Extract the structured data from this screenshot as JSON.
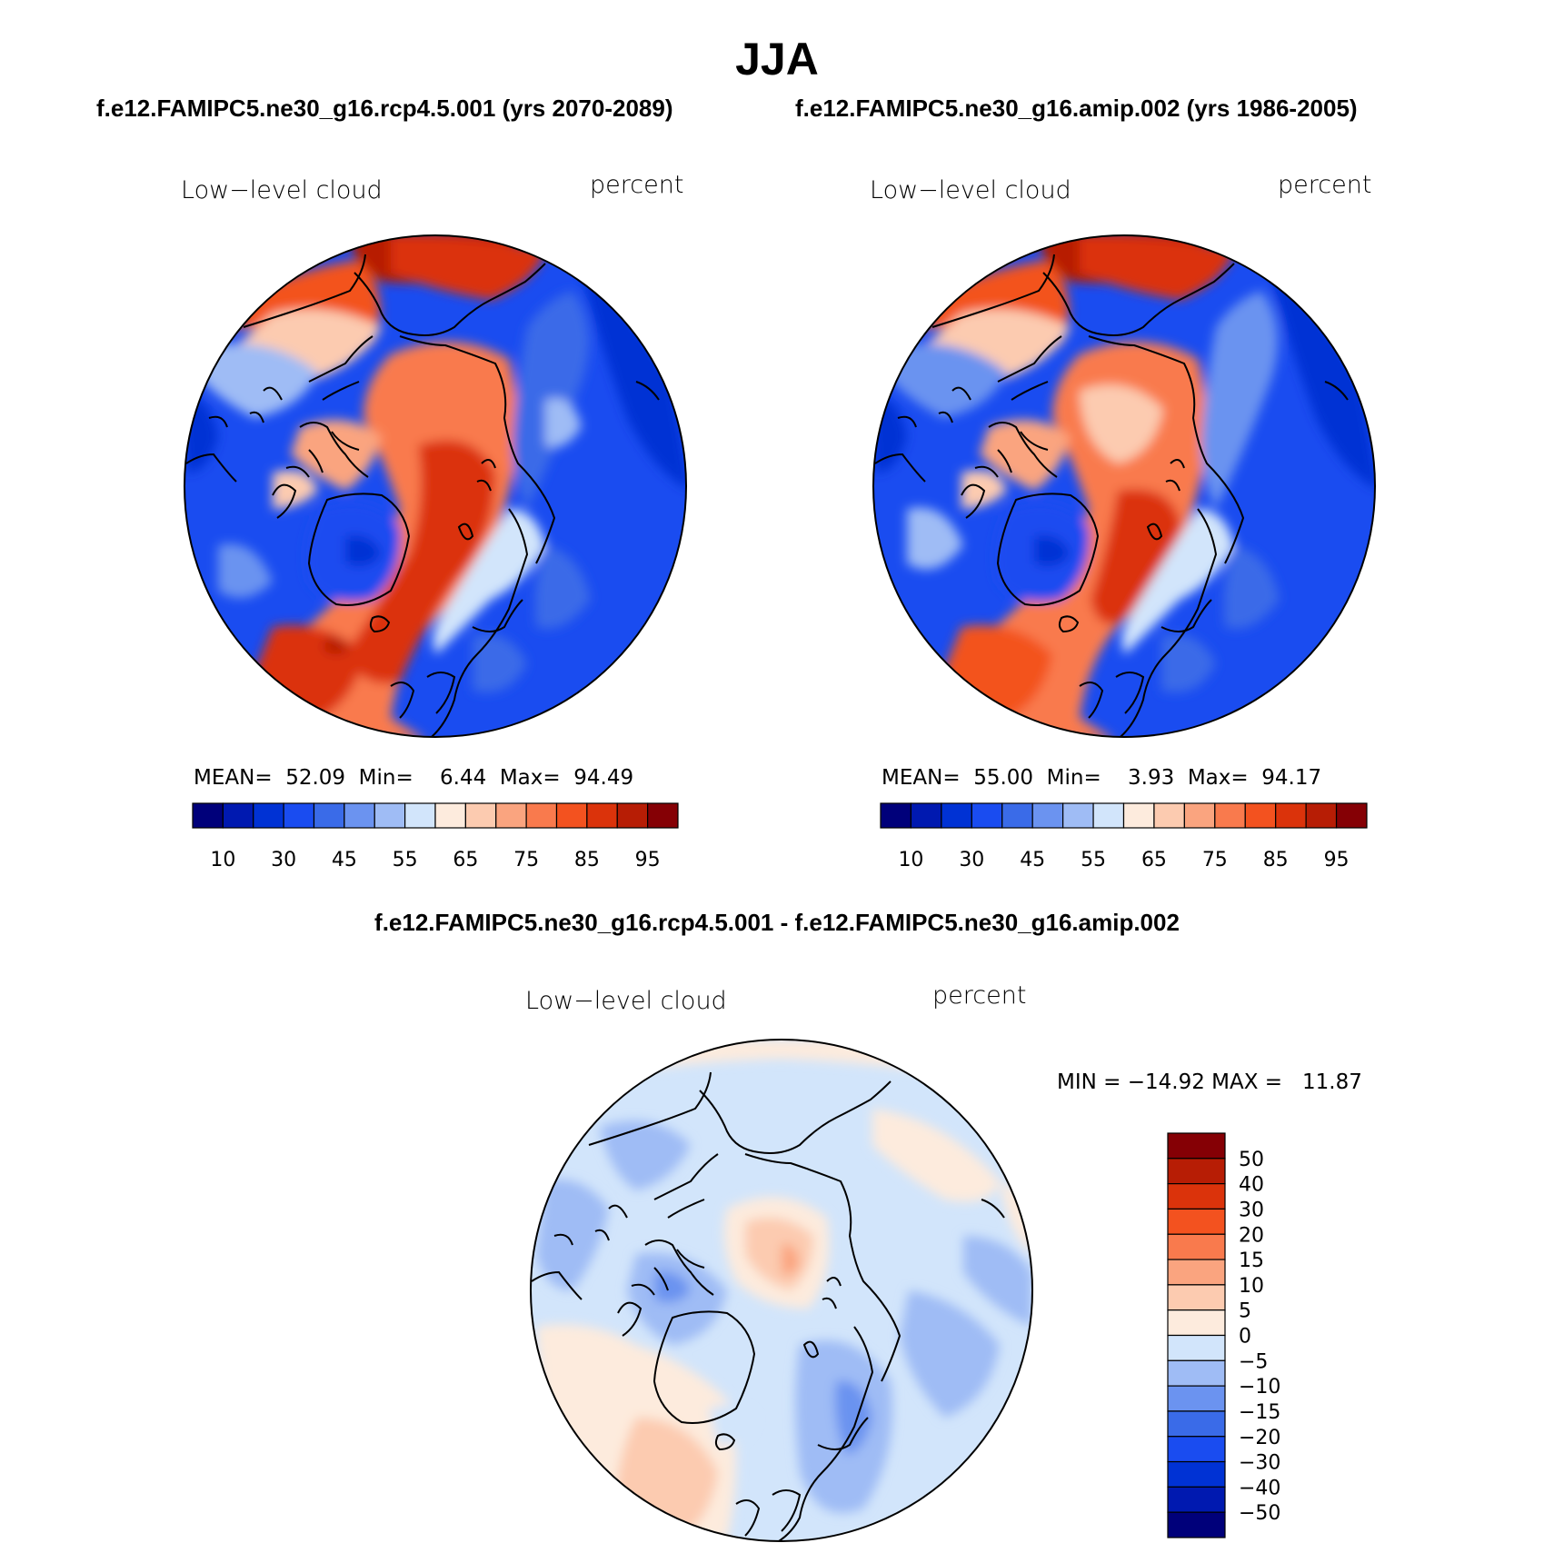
{
  "title": "JJA",
  "subtitle_left": "f.e12.FAMIPC5.ne30_g16.rcp4.5.001 (yrs 2070-2089)",
  "subtitle_right": "f.e12.FAMIPC5.ne30_g16.amip.002 (yrs 1986-2005)",
  "diff_title": "f.e12.FAMIPC5.ne30_g16.rcp4.5.001 - f.e12.FAMIPC5.ne30_g16.amip.002",
  "panels": [
    {
      "variable": "Low−level cloud",
      "units": "percent",
      "stats": "MEAN=  52.09  Min=    6.44  Max=  94.49",
      "colorbar_labels": [
        "10",
        "30",
        "45",
        "55",
        "65",
        "75",
        "85",
        "95"
      ]
    },
    {
      "variable": "Low−level cloud",
      "units": "percent",
      "stats": "MEAN=  55.00  Min=    3.93  Max=  94.17",
      "colorbar_labels": [
        "10",
        "30",
        "45",
        "55",
        "65",
        "75",
        "85",
        "95"
      ]
    }
  ],
  "diff_panel": {
    "variable": "Low−level cloud",
    "units": "percent",
    "stats": "MIN = −14.92 MAX =   11.87",
    "colorbar_labels": [
      "50",
      "40",
      "30",
      "20",
      "15",
      "10",
      "5",
      "0",
      "−5",
      "−10",
      "−15",
      "−20",
      "−30",
      "−40",
      "−50"
    ]
  },
  "colors": {
    "field_palette": [
      "#00007a",
      "#0019b0",
      "#0032d4",
      "#1a4cf0",
      "#3a6be8",
      "#6b93f0",
      "#9fbcf5",
      "#d2e5fb",
      "#fdebdd",
      "#fccbb0",
      "#faa47f",
      "#f97a4d",
      "#f3521f",
      "#db330b",
      "#b71d05",
      "#850005"
    ],
    "diff_palette": [
      "#850005",
      "#b71d05",
      "#db330b",
      "#f3521f",
      "#f97a4d",
      "#faa47f",
      "#fccbb0",
      "#fdebdd",
      "#d2e5fb",
      "#9fbcf5",
      "#6b93f0",
      "#3a6be8",
      "#1a4cf0",
      "#0032d4",
      "#0019b0",
      "#00007a"
    ]
  }
}
